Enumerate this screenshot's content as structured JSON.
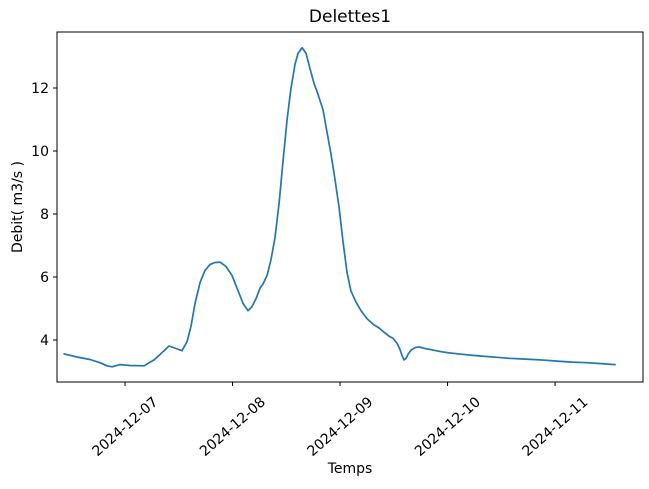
{
  "chart_data": {
    "type": "line",
    "title": "Delettes1",
    "xlabel": "Temps",
    "ylabel": "Debit( m3/s )",
    "line_color": "#1f77b4",
    "line_width": 1.7,
    "grid": false,
    "legend": "none",
    "xlim": [
      6.367,
      11.818
    ],
    "ylim": [
      2.667,
      13.778
    ],
    "y_ticks": [
      4,
      6,
      8,
      10,
      12
    ],
    "x_ticks": [
      {
        "value": 7,
        "label": "2024-12-07"
      },
      {
        "value": 8,
        "label": "2024-12-08"
      },
      {
        "value": 9,
        "label": "2024-12-09"
      },
      {
        "value": 10,
        "label": "2024-12-10"
      },
      {
        "value": 11,
        "label": "2024-12-11"
      }
    ],
    "series": [
      {
        "name": "Delettes1",
        "x": [
          6.433,
          6.553,
          6.674,
          6.767,
          6.833,
          6.879,
          6.953,
          7.047,
          7.177,
          7.27,
          7.344,
          7.409,
          7.474,
          7.53,
          7.577,
          7.614,
          7.651,
          7.698,
          7.744,
          7.791,
          7.837,
          7.884,
          7.94,
          7.995,
          8.051,
          8.098,
          8.144,
          8.181,
          8.219,
          8.256,
          8.284,
          8.321,
          8.358,
          8.395,
          8.433,
          8.47,
          8.507,
          8.544,
          8.581,
          8.609,
          8.647,
          8.684,
          8.721,
          8.758,
          8.795,
          8.842,
          8.879,
          8.916,
          8.953,
          8.991,
          9.028,
          9.065,
          9.102,
          9.149,
          9.195,
          9.251,
          9.307,
          9.363,
          9.419,
          9.456,
          9.493,
          9.53,
          9.558,
          9.577,
          9.595,
          9.614,
          9.633,
          9.66,
          9.698,
          9.735,
          9.791,
          9.865,
          9.94,
          10.014,
          10.126,
          10.237,
          10.349,
          10.46,
          10.572,
          10.684,
          10.795,
          10.907,
          11.019,
          11.158,
          11.298,
          11.428,
          11.558
        ],
        "y": [
          3.56,
          3.46,
          3.38,
          3.28,
          3.18,
          3.15,
          3.22,
          3.19,
          3.18,
          3.37,
          3.6,
          3.81,
          3.73,
          3.66,
          3.95,
          4.45,
          5.16,
          5.83,
          6.21,
          6.4,
          6.46,
          6.47,
          6.33,
          6.05,
          5.57,
          5.16,
          4.93,
          5.06,
          5.32,
          5.65,
          5.78,
          6.05,
          6.55,
          7.25,
          8.35,
          9.7,
          11.0,
          12.0,
          12.75,
          13.1,
          13.28,
          13.1,
          12.6,
          12.15,
          11.8,
          11.3,
          10.6,
          9.9,
          9.1,
          8.2,
          7.1,
          6.15,
          5.55,
          5.2,
          4.93,
          4.68,
          4.5,
          4.38,
          4.22,
          4.12,
          4.05,
          3.9,
          3.7,
          3.5,
          3.37,
          3.42,
          3.55,
          3.68,
          3.76,
          3.78,
          3.73,
          3.68,
          3.63,
          3.59,
          3.55,
          3.51,
          3.48,
          3.45,
          3.42,
          3.4,
          3.38,
          3.36,
          3.33,
          3.3,
          3.28,
          3.25,
          3.22
        ]
      }
    ]
  }
}
